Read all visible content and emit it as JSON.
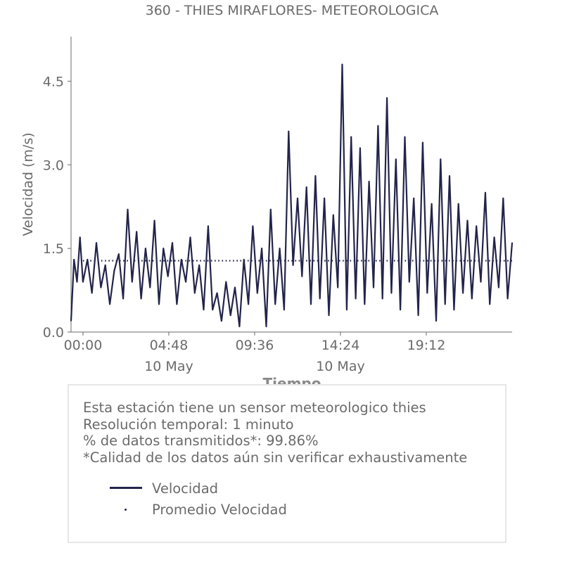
{
  "colors": {
    "series": "#23244a",
    "text": "#6b6b6b",
    "axis": "#6b6b6b",
    "box_border": "#e6e6e6"
  },
  "chart_data": {
    "type": "line",
    "title": "360 - THIES MIRAFLORES- METEOROLOGICA",
    "xlabel": "Tiempo",
    "ylabel": "Velocidad (m/s)",
    "ylim": [
      0,
      5.3
    ],
    "xlim": [
      "2024-05-09 23:20",
      "2024-05-11 00:00"
    ],
    "yticks": [
      0.0,
      1.5,
      3.0,
      4.5
    ],
    "ytick_labels": [
      "0.0",
      "1.5",
      "3.0",
      "4.5"
    ],
    "xticks": [
      "2024-05-10 00:00",
      "2024-05-10 04:48",
      "2024-05-10 09:36",
      "2024-05-10 14:24",
      "2024-05-10 19:12"
    ],
    "xtick_labels": [
      "00:00",
      "04:48",
      "09:36",
      "14:24",
      "19:12"
    ],
    "date_labels": [
      {
        "at": "2024-05-10 04:48",
        "label": "10 May"
      },
      {
        "at": "2024-05-10 14:24",
        "label": "10 May"
      }
    ],
    "grid": false,
    "series": [
      {
        "name": "Velocidad",
        "style": "solid",
        "x": [
          "2024-05-09 23:20",
          "2024-05-09 23:30",
          "2024-05-09 23:40",
          "2024-05-09 23:50",
          "2024-05-10 00:00",
          "2024-05-10 00:15",
          "2024-05-10 00:30",
          "2024-05-10 00:45",
          "2024-05-10 01:00",
          "2024-05-10 01:15",
          "2024-05-10 01:30",
          "2024-05-10 01:45",
          "2024-05-10 02:00",
          "2024-05-10 02:15",
          "2024-05-10 02:30",
          "2024-05-10 02:45",
          "2024-05-10 03:00",
          "2024-05-10 03:15",
          "2024-05-10 03:30",
          "2024-05-10 03:45",
          "2024-05-10 04:00",
          "2024-05-10 04:15",
          "2024-05-10 04:30",
          "2024-05-10 04:45",
          "2024-05-10 05:00",
          "2024-05-10 05:15",
          "2024-05-10 05:30",
          "2024-05-10 05:45",
          "2024-05-10 06:00",
          "2024-05-10 06:15",
          "2024-05-10 06:30",
          "2024-05-10 06:45",
          "2024-05-10 07:00",
          "2024-05-10 07:15",
          "2024-05-10 07:30",
          "2024-05-10 07:45",
          "2024-05-10 08:00",
          "2024-05-10 08:15",
          "2024-05-10 08:30",
          "2024-05-10 08:45",
          "2024-05-10 09:00",
          "2024-05-10 09:15",
          "2024-05-10 09:30",
          "2024-05-10 09:45",
          "2024-05-10 10:00",
          "2024-05-10 10:15",
          "2024-05-10 10:30",
          "2024-05-10 10:45",
          "2024-05-10 11:00",
          "2024-05-10 11:15",
          "2024-05-10 11:30",
          "2024-05-10 11:45",
          "2024-05-10 12:00",
          "2024-05-10 12:15",
          "2024-05-10 12:30",
          "2024-05-10 12:45",
          "2024-05-10 13:00",
          "2024-05-10 13:15",
          "2024-05-10 13:30",
          "2024-05-10 13:45",
          "2024-05-10 14:00",
          "2024-05-10 14:15",
          "2024-05-10 14:30",
          "2024-05-10 14:45",
          "2024-05-10 15:00",
          "2024-05-10 15:15",
          "2024-05-10 15:30",
          "2024-05-10 15:45",
          "2024-05-10 16:00",
          "2024-05-10 16:15",
          "2024-05-10 16:30",
          "2024-05-10 16:45",
          "2024-05-10 17:00",
          "2024-05-10 17:15",
          "2024-05-10 17:30",
          "2024-05-10 17:45",
          "2024-05-10 18:00",
          "2024-05-10 18:15",
          "2024-05-10 18:30",
          "2024-05-10 18:45",
          "2024-05-10 19:00",
          "2024-05-10 19:15",
          "2024-05-10 19:30",
          "2024-05-10 19:45",
          "2024-05-10 20:00",
          "2024-05-10 20:15",
          "2024-05-10 20:30",
          "2024-05-10 20:45",
          "2024-05-10 21:00",
          "2024-05-10 21:15",
          "2024-05-10 21:30",
          "2024-05-10 21:45",
          "2024-05-10 22:00",
          "2024-05-10 22:15",
          "2024-05-10 22:30",
          "2024-05-10 22:45",
          "2024-05-10 23:00",
          "2024-05-10 23:15",
          "2024-05-10 23:30",
          "2024-05-10 23:45",
          "2024-05-11 00:00"
        ],
        "y": [
          0.2,
          1.3,
          0.9,
          1.7,
          0.9,
          1.3,
          0.7,
          1.6,
          0.8,
          1.2,
          0.5,
          1.1,
          1.4,
          0.6,
          2.2,
          0.9,
          1.8,
          0.6,
          1.5,
          0.8,
          2.0,
          0.5,
          1.5,
          1.0,
          1.6,
          0.5,
          1.3,
          0.9,
          1.7,
          0.7,
          1.2,
          0.4,
          1.9,
          0.4,
          0.7,
          0.2,
          0.9,
          0.3,
          0.8,
          0.1,
          1.3,
          0.5,
          1.9,
          0.7,
          1.5,
          0.1,
          2.2,
          0.5,
          1.5,
          0.4,
          3.6,
          1.2,
          2.4,
          1.0,
          2.6,
          0.5,
          2.8,
          0.6,
          2.4,
          0.3,
          2.1,
          0.8,
          4.8,
          0.4,
          3.5,
          0.6,
          3.3,
          0.5,
          2.7,
          0.8,
          3.7,
          0.6,
          4.2,
          0.7,
          3.1,
          0.4,
          3.5,
          0.9,
          2.4,
          0.3,
          3.4,
          0.7,
          2.3,
          0.2,
          3.1,
          0.5,
          2.8,
          0.4,
          2.3,
          0.7,
          2.0,
          0.6,
          1.9,
          0.9,
          2.5,
          0.5,
          1.7,
          0.8,
          2.4,
          0.6,
          1.6
        ]
      },
      {
        "name": "Promedio Velocidad",
        "style": "dotted",
        "x": [
          "2024-05-10 00:00",
          "2024-05-11 00:00"
        ],
        "y": [
          1.28,
          1.28
        ]
      }
    ],
    "legend": {
      "placement": "bottom-box",
      "entries": [
        "Velocidad",
        "Promedio Velocidad"
      ]
    }
  },
  "info": {
    "lines": [
      "Esta estación tiene un sensor meteorologico thies",
      "Resolución temporal: 1 minuto",
      "% de datos transmitidos*: 99.86%",
      "*Calidad de los datos aún sin verificar exhaustivamente"
    ]
  }
}
